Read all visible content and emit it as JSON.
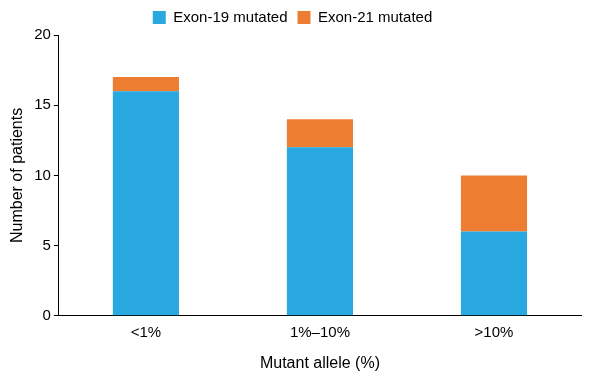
{
  "chart_data": {
    "type": "bar",
    "categories": [
      "<1%",
      "1%–10%",
      ">10%"
    ],
    "series": [
      {
        "name": "Exon-19 mutated",
        "color": "#29a9e0",
        "values": [
          16,
          12,
          6
        ]
      },
      {
        "name": "Exon-21 mutated",
        "color": "#ed7d31",
        "values": [
          1,
          2,
          4
        ]
      }
    ],
    "x_label": "Mutant allele (%)",
    "y_label": "Number of patients",
    "ylim": [
      0,
      20
    ],
    "yticks": [
      0,
      5,
      10,
      15,
      20
    ],
    "stacked": true,
    "grid": false,
    "legend": "top"
  }
}
